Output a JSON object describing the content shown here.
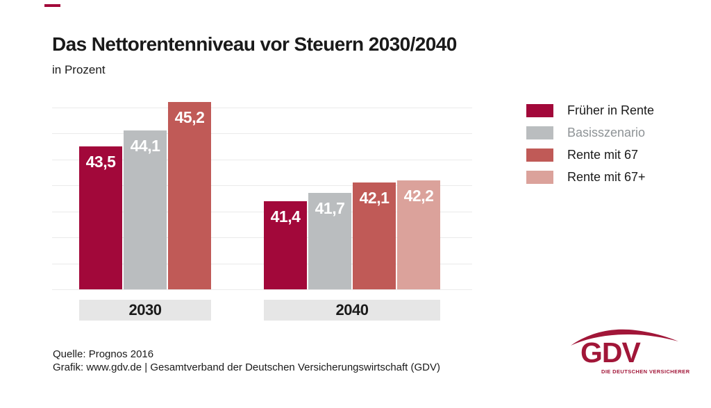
{
  "header": {
    "title": "Das Nettorentenniveau vor Steuern 2030/2040",
    "subtitle": "in Prozent"
  },
  "chart_data": {
    "type": "bar",
    "title": "Das Nettorentenniveau vor Steuern 2030/2040",
    "unit_label": "in Prozent",
    "categories": [
      "2030",
      "2040"
    ],
    "series": [
      {
        "name": "Früher in Rente",
        "color": "#A2083A",
        "values": [
          43.5,
          41.4
        ]
      },
      {
        "name": "Basisszenario",
        "color": "#BABDBF",
        "values": [
          44.1,
          41.7
        ]
      },
      {
        "name": "Rente mit 67",
        "color": "#C05A57",
        "values": [
          45.2,
          42.1
        ]
      },
      {
        "name": "Rente mit 67+",
        "color": "#DBA29B",
        "values": [
          null,
          42.2
        ]
      }
    ],
    "ylim": [
      38,
      45
    ],
    "gridline_step": 1,
    "grid": true,
    "legend_position": "right",
    "bar_label_color": "#FFFFFF",
    "value_label_format": "comma-decimal"
  },
  "legend": {
    "items": [
      {
        "label": "Früher in Rente",
        "swatch_color": "#A2083A",
        "text_color": "#1A1A1A"
      },
      {
        "label": "Basisszenario",
        "swatch_color": "#BABDBF",
        "text_color": "#8E9396"
      },
      {
        "label": "Rente mit 67",
        "swatch_color": "#C05A57",
        "text_color": "#1A1A1A"
      },
      {
        "label": "Rente mit 67+",
        "swatch_color": "#DBA29B",
        "text_color": "#1A1A1A"
      }
    ]
  },
  "footer": {
    "source": "Quelle: Prognos 2016",
    "credit": "Grafik: www.gdv.de | Gesamtverband der Deutschen Versicherungswirtschaft (GDV)"
  },
  "logo": {
    "name": "GDV",
    "tagline": "DIE DEUTSCHEN VERSICHERER"
  }
}
